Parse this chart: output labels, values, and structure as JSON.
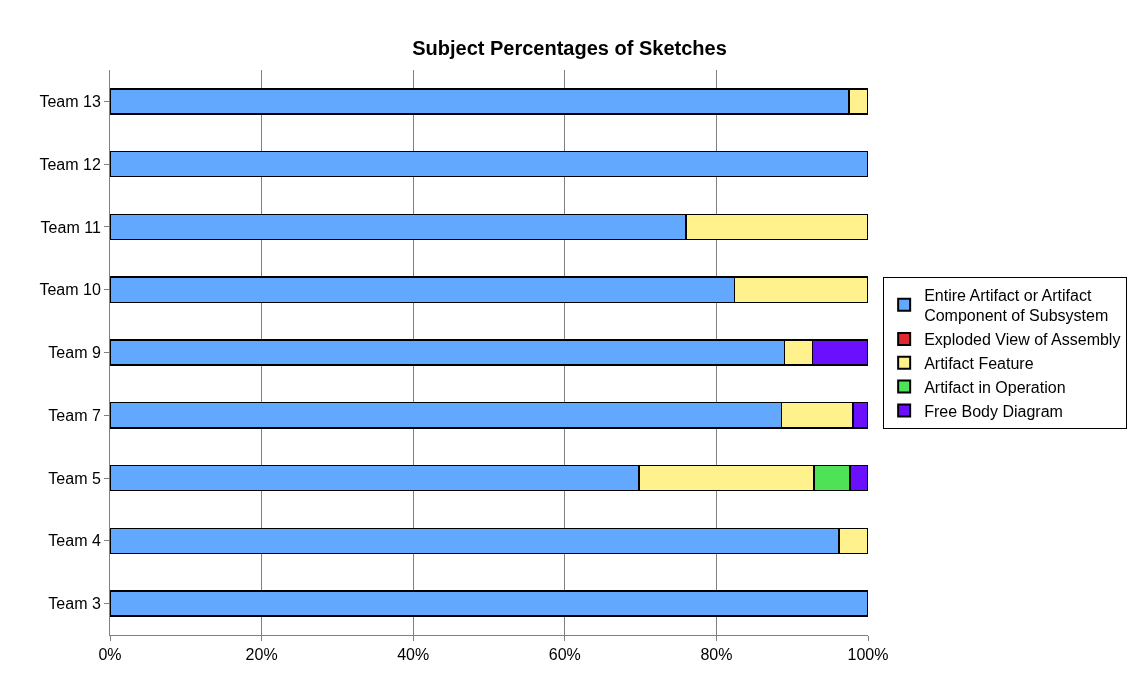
{
  "chart_data": {
    "type": "bar",
    "orientation": "horizontal",
    "stacked": true,
    "title": "Subject Percentages of Sketches",
    "categories": [
      "Team 13",
      "Team 12",
      "Team 11",
      "Team 10",
      "Team 9",
      "Team 7",
      "Team 5",
      "Team 4",
      "Team 3"
    ],
    "series": [
      {
        "name": "Entire Artifact or Artifact Component of Subsystem",
        "color": "#63a8ff",
        "values": [
          97.5,
          100,
          76,
          82.4,
          89,
          88.6,
          69.8,
          96.2,
          100
        ]
      },
      {
        "name": "Exploded View of Assembly",
        "color": "#e0282e",
        "values": [
          0,
          0,
          0,
          0,
          0,
          0,
          0,
          0,
          0
        ]
      },
      {
        "name": "Artifact Feature",
        "color": "#fff28c",
        "values": [
          2.5,
          0,
          24,
          17.6,
          3.7,
          9.4,
          23.1,
          3.8,
          0
        ]
      },
      {
        "name": "Artifact in Operation",
        "color": "#4ee356",
        "values": [
          0,
          0,
          0,
          0,
          0,
          0,
          4.7,
          0,
          0
        ]
      },
      {
        "name": "Free Body Diagram",
        "color": "#6a10ff",
        "values": [
          0,
          0,
          0,
          0,
          7.3,
          2,
          2.4,
          0,
          0
        ]
      }
    ],
    "xlim": [
      0,
      100
    ],
    "xticks": [
      {
        "value": 0,
        "label": "0%"
      },
      {
        "value": 20,
        "label": "20%"
      },
      {
        "value": 40,
        "label": "40%"
      },
      {
        "value": 60,
        "label": "60%"
      },
      {
        "value": 80,
        "label": "80%"
      },
      {
        "value": 100,
        "label": "100%"
      }
    ],
    "grid": "x",
    "legend": "right"
  }
}
